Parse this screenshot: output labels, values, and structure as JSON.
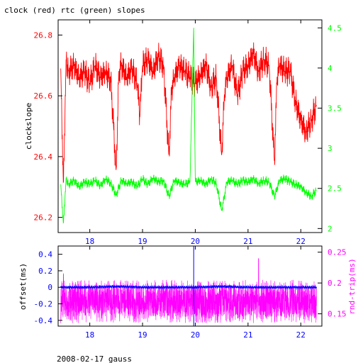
{
  "title": "clock (red) rtc (green) slopes",
  "footer": "2008-02-17 gauss",
  "colors": {
    "clock": "#ff0000",
    "rtc": "#00ff00",
    "offset": "#0000ff",
    "rnd_trip": "#ff00ff",
    "axis": "#000000",
    "marker": "#0000ff"
  },
  "chart_data": [
    {
      "type": "line",
      "title": "clock (red) rtc (green) slopes",
      "ylabel": "clockslope",
      "xlim": [
        17.4,
        22.4
      ],
      "x_ticks": [
        18,
        19,
        20,
        21,
        22
      ],
      "ylim_left": [
        26.15,
        26.85
      ],
      "y_ticks_left": [
        26.2,
        26.4,
        26.6,
        26.8
      ],
      "ylim_right": [
        1.95,
        4.6
      ],
      "y_ticks_right": [
        2,
        2.5,
        3,
        3.5,
        4,
        4.5
      ],
      "grid": false,
      "series": [
        {
          "name": "clock",
          "axis": "left",
          "x": [
            17.45,
            17.5,
            17.55,
            17.6,
            17.7,
            17.8,
            17.9,
            18.0,
            18.1,
            18.2,
            18.3,
            18.4,
            18.5,
            18.55,
            18.6,
            18.7,
            18.8,
            18.9,
            18.95,
            19.0,
            19.1,
            19.2,
            19.3,
            19.4,
            19.5,
            19.55,
            19.6,
            19.7,
            19.8,
            19.9,
            20.0,
            20.1,
            20.2,
            20.3,
            20.4,
            20.5,
            20.55,
            20.6,
            20.7,
            20.8,
            20.9,
            21.0,
            21.1,
            21.2,
            21.3,
            21.4,
            21.5,
            21.55,
            21.6,
            21.7,
            21.8,
            21.9,
            22.0,
            22.1,
            22.2,
            22.3
          ],
          "y": [
            26.69,
            26.3,
            26.72,
            26.68,
            26.7,
            26.66,
            26.68,
            26.64,
            26.7,
            26.66,
            26.68,
            26.65,
            26.35,
            26.68,
            26.7,
            26.66,
            26.69,
            26.64,
            26.53,
            26.7,
            26.72,
            26.68,
            26.73,
            26.7,
            26.4,
            26.62,
            26.66,
            26.7,
            26.68,
            26.66,
            26.64,
            26.67,
            26.7,
            26.63,
            26.66,
            26.4,
            26.6,
            26.66,
            26.7,
            26.6,
            26.68,
            26.7,
            26.74,
            26.68,
            26.72,
            26.7,
            26.38,
            26.66,
            26.7,
            26.68,
            26.68,
            26.58,
            26.52,
            26.48,
            26.52,
            26.57
          ]
        },
        {
          "name": "rtc",
          "axis": "right",
          "x": [
            17.45,
            17.5,
            17.55,
            17.6,
            17.7,
            17.8,
            17.9,
            18.0,
            18.1,
            18.2,
            18.3,
            18.4,
            18.5,
            18.6,
            18.7,
            18.8,
            18.9,
            19.0,
            19.1,
            19.2,
            19.3,
            19.4,
            19.5,
            19.6,
            19.7,
            19.8,
            19.9,
            19.97,
            20.0,
            20.1,
            20.2,
            20.3,
            20.4,
            20.5,
            20.6,
            20.7,
            20.8,
            20.9,
            21.0,
            21.1,
            21.2,
            21.3,
            21.4,
            21.5,
            21.6,
            21.7,
            21.8,
            21.9,
            22.0,
            22.1,
            22.2,
            22.3
          ],
          "y": [
            2.55,
            2.05,
            2.62,
            2.55,
            2.6,
            2.52,
            2.58,
            2.55,
            2.6,
            2.53,
            2.62,
            2.56,
            2.42,
            2.6,
            2.56,
            2.58,
            2.52,
            2.62,
            2.55,
            2.63,
            2.58,
            2.6,
            2.4,
            2.6,
            2.57,
            2.55,
            2.58,
            4.5,
            2.58,
            2.6,
            2.55,
            2.62,
            2.56,
            2.22,
            2.58,
            2.6,
            2.55,
            2.6,
            2.58,
            2.62,
            2.56,
            2.6,
            2.58,
            2.4,
            2.6,
            2.62,
            2.58,
            2.55,
            2.52,
            2.45,
            2.4,
            2.48
          ]
        }
      ]
    },
    {
      "type": "line",
      "ylabel_left": "offset(ms)",
      "ylabel_right": "rnd-trip(ms)",
      "xlim": [
        17.4,
        22.4
      ],
      "x_ticks": [
        18,
        19,
        20,
        21,
        22
      ],
      "ylim_left": [
        -0.47,
        0.5
      ],
      "y_ticks_left": [
        0.4,
        0.2,
        0,
        -0.2,
        -0.4
      ],
      "ylim_right": [
        0.13,
        0.26
      ],
      "y_ticks_right": [
        0.25,
        0.2,
        0.15
      ],
      "vertical_marker_x": 19.97,
      "grid": false,
      "series": [
        {
          "name": "offset",
          "axis": "left",
          "baseline": 0.0,
          "noise": 0.02,
          "x": [
            17.45,
            17.5,
            18.0,
            18.5,
            19.0,
            19.5,
            19.97,
            20.5,
            21.0,
            21.5,
            22.0,
            22.3
          ],
          "y": [
            0.0,
            0.0,
            0.0,
            0.01,
            0.0,
            0.0,
            0.0,
            0.01,
            0.0,
            0.0,
            0.0,
            0.0
          ]
        },
        {
          "name": "rnd-trip",
          "axis": "right",
          "baseline": 0.17,
          "spread": 0.035,
          "x": [
            17.45,
            17.5,
            18.0,
            18.5,
            19.0,
            19.5,
            20.0,
            20.5,
            21.0,
            21.2,
            21.5,
            22.0,
            22.3
          ],
          "y": [
            0.17,
            0.215,
            0.17,
            0.18,
            0.17,
            0.17,
            0.17,
            0.2,
            0.17,
            0.24,
            0.17,
            0.17,
            0.17
          ]
        }
      ]
    }
  ]
}
